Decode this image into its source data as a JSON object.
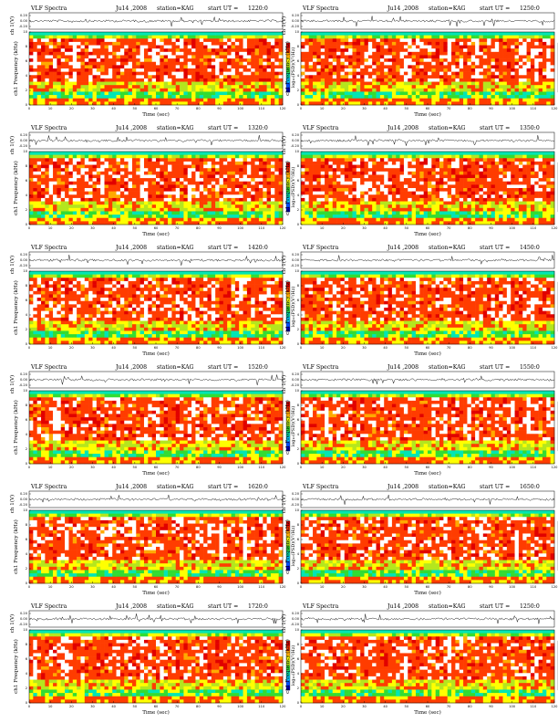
{
  "figure": {
    "title_prefix": "VLF Spectra",
    "date": "Ju14 ,2008",
    "station": "station=KAG",
    "start_prefix": "start UT =",
    "waveform_ylabel": "ch 1(V)",
    "spectrum_ylabel": "ch1 Frequency (kHz)",
    "xlabel": "Time (sec)",
    "colorbar_label": "log₁₀(PSD)(V²/Hz)"
  },
  "colors": {
    "colormap": [
      "#0000c8",
      "#0050ff",
      "#00c8ff",
      "#00e6b4",
      "#32dc32",
      "#b4e61e",
      "#ffff00",
      "#ffaa00",
      "#ff3c00",
      "#e10000",
      "#ffffff"
    ],
    "trace": "#000000",
    "frame": "#000000"
  },
  "chart_data": [
    {
      "type": "heatmap",
      "title": "VLF Spectra Ju14 ,2008 station=KAG start UT =1220:0",
      "start_ut": "1220:0",
      "x_range": [
        0,
        120
      ],
      "y_range": [
        0,
        10
      ],
      "waveform_yticks": [
        "0.20",
        "0.00",
        "-0.20"
      ],
      "xticks": [
        "0",
        "10",
        "20",
        "30",
        "40",
        "50",
        "60",
        "70",
        "80",
        "90",
        "100",
        "110",
        "120"
      ],
      "yticks": [
        "0",
        "2",
        "4",
        "6",
        "8",
        "10"
      ],
      "xlabel": "Time (sec)",
      "ylabel": "ch1 Frequency (kHz)"
    },
    {
      "type": "heatmap",
      "title": "VLF Spectra Ju14 ,2008 station=KAG start UT =1250:0",
      "start_ut": "1250:0",
      "x_range": [
        0,
        120
      ],
      "y_range": [
        0,
        10
      ],
      "waveform_yticks": [
        "0.20",
        "0.00",
        "-0.20"
      ],
      "xticks": [
        "0",
        "10",
        "20",
        "30",
        "40",
        "50",
        "60",
        "70",
        "80",
        "90",
        "100",
        "110",
        "120"
      ],
      "yticks": [
        "0",
        "2",
        "4",
        "6",
        "8",
        "10"
      ],
      "xlabel": "Time (sec)",
      "ylabel": "ch1 Frequency (kHz)"
    },
    {
      "type": "heatmap",
      "title": "VLF Spectra Ju14 ,2008 station=KAG start UT =1320:0",
      "start_ut": "1320:0",
      "x_range": [
        0,
        120
      ],
      "y_range": [
        0,
        10
      ],
      "waveform_yticks": [
        "0.20",
        "0.00",
        "-0.20"
      ],
      "xticks": [
        "0",
        "10",
        "20",
        "30",
        "40",
        "50",
        "60",
        "70",
        "80",
        "90",
        "100",
        "110",
        "120"
      ],
      "yticks": [
        "0",
        "2",
        "4",
        "6",
        "8",
        "10"
      ],
      "xlabel": "Time (sec)",
      "ylabel": "ch1 Frequency (kHz)"
    },
    {
      "type": "heatmap",
      "title": "VLF Spectra Ju14 ,2008 station=KAG start UT =1350:0",
      "start_ut": "1350:0",
      "x_range": [
        0,
        120
      ],
      "y_range": [
        0,
        10
      ],
      "waveform_yticks": [
        "0.20",
        "0.00",
        "-0.20"
      ],
      "xticks": [
        "0",
        "10",
        "20",
        "30",
        "40",
        "50",
        "60",
        "70",
        "80",
        "90",
        "100",
        "110",
        "120"
      ],
      "yticks": [
        "0",
        "2",
        "4",
        "6",
        "8",
        "10"
      ],
      "xlabel": "Time (sec)",
      "ylabel": "ch1 Frequency (kHz)"
    },
    {
      "type": "heatmap",
      "title": "VLF Spectra Ju14 ,2008 station=KAG start UT =1420:0",
      "start_ut": "1420:0",
      "x_range": [
        0,
        120
      ],
      "y_range": [
        0,
        10
      ],
      "waveform_yticks": [
        "0.20",
        "0.00",
        "-0.20"
      ],
      "xticks": [
        "0",
        "10",
        "20",
        "30",
        "40",
        "50",
        "60",
        "70",
        "80",
        "90",
        "100",
        "110",
        "120"
      ],
      "yticks": [
        "0",
        "2",
        "4",
        "6",
        "8",
        "10"
      ],
      "xlabel": "Time (sec)",
      "ylabel": "ch1 Frequency (kHz)"
    },
    {
      "type": "heatmap",
      "title": "VLF Spectra Ju14 ,2008 station=KAG start UT =1450:0",
      "start_ut": "1450:0",
      "x_range": [
        0,
        120
      ],
      "y_range": [
        0,
        10
      ],
      "waveform_yticks": [
        "0.20",
        "0.00",
        "-0.20"
      ],
      "xticks": [
        "0",
        "10",
        "20",
        "30",
        "40",
        "50",
        "60",
        "70",
        "80",
        "90",
        "100",
        "110",
        "120"
      ],
      "yticks": [
        "0",
        "2",
        "4",
        "6",
        "8",
        "10"
      ],
      "xlabel": "Time (sec)",
      "ylabel": "ch1 Frequency (kHz)"
    },
    {
      "type": "heatmap",
      "title": "VLF Spectra Ju14 ,2008 station=KAG start UT =1520:0",
      "start_ut": "1520:0",
      "x_range": [
        0,
        120
      ],
      "y_range": [
        0,
        10
      ],
      "waveform_yticks": [
        "0.20",
        "0.00",
        "-0.20"
      ],
      "xticks": [
        "0",
        "10",
        "20",
        "30",
        "40",
        "50",
        "60",
        "70",
        "80",
        "90",
        "100",
        "110",
        "120"
      ],
      "yticks": [
        "0",
        "2",
        "4",
        "6",
        "8",
        "10"
      ],
      "xlabel": "Time (sec)",
      "ylabel": "ch1 Frequency (kHz)"
    },
    {
      "type": "heatmap",
      "title": "VLF Spectra Ju14 ,2008 station=KAG start UT =1550:0",
      "start_ut": "1550:0",
      "x_range": [
        0,
        120
      ],
      "y_range": [
        0,
        10
      ],
      "waveform_yticks": [
        "0.20",
        "0.00",
        "-0.20"
      ],
      "xticks": [
        "0",
        "10",
        "20",
        "30",
        "40",
        "50",
        "60",
        "70",
        "80",
        "90",
        "100",
        "110",
        "120"
      ],
      "yticks": [
        "0",
        "2",
        "4",
        "6",
        "8",
        "10"
      ],
      "xlabel": "Time (sec)",
      "ylabel": "ch1 Frequency (kHz)"
    },
    {
      "type": "heatmap",
      "title": "VLF Spectra Ju14 ,2008 station=KAG start UT =1620:0",
      "start_ut": "1620:0",
      "x_range": [
        0,
        120
      ],
      "y_range": [
        0,
        10
      ],
      "waveform_yticks": [
        "0.20",
        "0.00",
        "-0.20"
      ],
      "xticks": [
        "0",
        "10",
        "20",
        "30",
        "40",
        "50",
        "60",
        "70",
        "80",
        "90",
        "100",
        "110",
        "120"
      ],
      "yticks": [
        "0",
        "2",
        "4",
        "6",
        "8",
        "10"
      ],
      "xlabel": "Time (sec)",
      "ylabel": "ch1 Frequency (kHz)"
    },
    {
      "type": "heatmap",
      "title": "VLF Spectra Ju14 ,2008 station=KAG start UT =1650:0",
      "start_ut": "1650:0",
      "x_range": [
        0,
        120
      ],
      "y_range": [
        0,
        10
      ],
      "waveform_yticks": [
        "0.20",
        "0.00",
        "-0.20"
      ],
      "xticks": [
        "0",
        "10",
        "20",
        "30",
        "40",
        "50",
        "60",
        "70",
        "80",
        "90",
        "100",
        "110",
        "120"
      ],
      "yticks": [
        "0",
        "2",
        "4",
        "6",
        "8",
        "10"
      ],
      "xlabel": "Time (sec)",
      "ylabel": "ch1 Frequency (kHz)"
    },
    {
      "type": "heatmap",
      "title": "VLF Spectra Ju14 ,2008 station=KAG start UT =1720:0",
      "start_ut": "1720:0",
      "x_range": [
        0,
        120
      ],
      "y_range": [
        0,
        10
      ],
      "waveform_yticks": [
        "0.20",
        "0.00",
        "-0.20"
      ],
      "xticks": [
        "0",
        "10",
        "20",
        "30",
        "40",
        "50",
        "60",
        "70",
        "80",
        "90",
        "100",
        "110",
        "120"
      ],
      "yticks": [
        "0",
        "2",
        "4",
        "6",
        "8",
        "10"
      ],
      "xlabel": "Time (sec)",
      "ylabel": "ch1 Frequency (kHz)"
    },
    {
      "type": "heatmap",
      "title": "VLF Spectra Ju14 ,2008 station=KAG start UT =1250:0",
      "start_ut": "1250:0",
      "x_range": [
        0,
        120
      ],
      "y_range": [
        0,
        10
      ],
      "waveform_yticks": [
        "0.20",
        "0.00",
        "-0.20"
      ],
      "xticks": [
        "0",
        "10",
        "20",
        "30",
        "40",
        "50",
        "60",
        "70",
        "80",
        "90",
        "100",
        "110",
        "120"
      ],
      "yticks": [
        "0",
        "2",
        "4",
        "6",
        "8",
        "10"
      ],
      "xlabel": "Time (sec)",
      "ylabel": "ch1 Frequency (kHz)"
    }
  ]
}
